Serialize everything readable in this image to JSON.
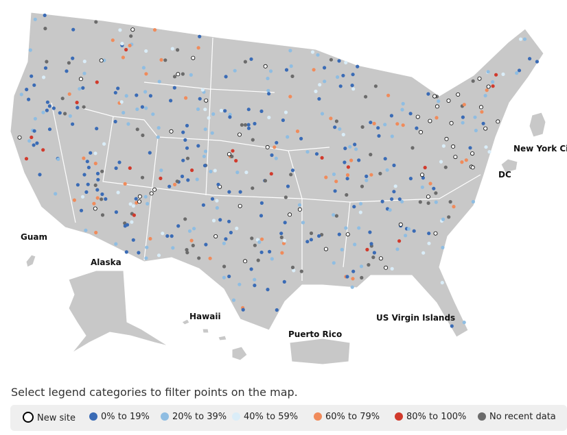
{
  "map_labels": [
    "Guam",
    "Alaska",
    "Hawaii",
    "Puerto Rico",
    "US Virgin Islands",
    "New York Ci",
    "DC"
  ],
  "instruction": "Select legend categories to filter points on the map.",
  "legend": [
    {
      "label": "New site",
      "color": "#ffffff"
    },
    {
      "label": "0% to 19%",
      "color": "#3a6bb5"
    },
    {
      "label": "20% to 39%",
      "color": "#8fbde2"
    },
    {
      "label": "40% to 59%",
      "color": "#daedf8"
    },
    {
      "label": "60% to 79%",
      "color": "#f08b5b"
    },
    {
      "label": "80% to 100%",
      "color": "#d13a2c"
    },
    {
      "label": "No recent data",
      "color": "#6b6b6b"
    }
  ]
}
